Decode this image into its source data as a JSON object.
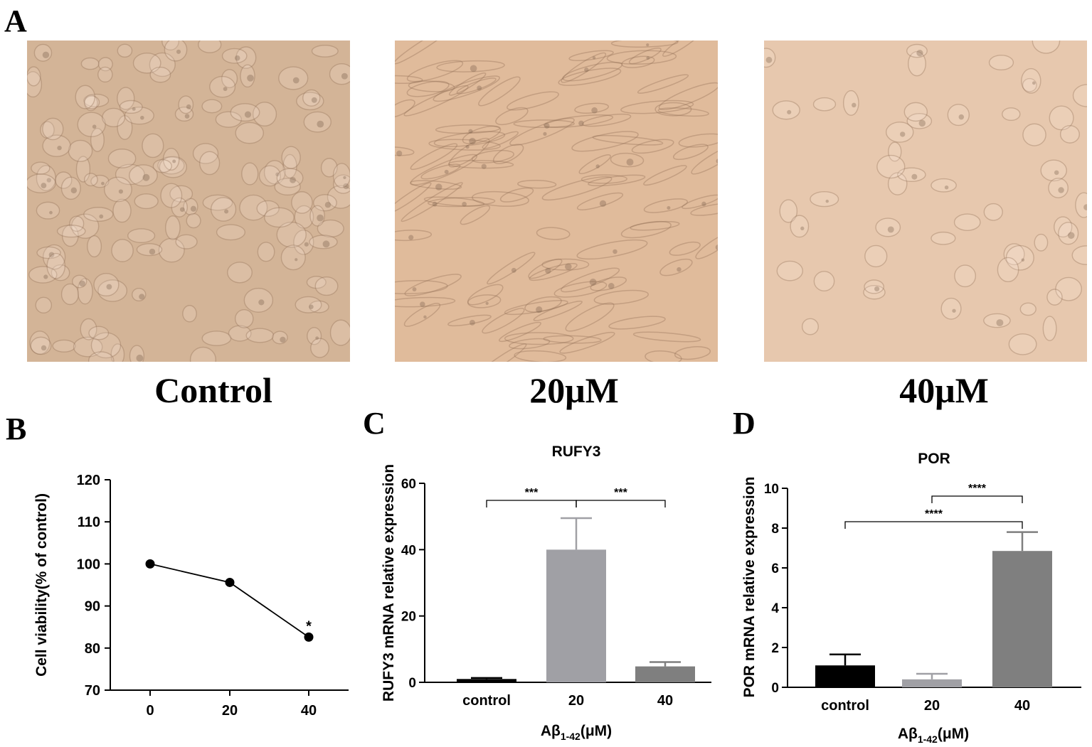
{
  "panels": {
    "a": "A",
    "b": "B",
    "c": "C",
    "d": "D"
  },
  "micrographs": [
    {
      "label": "Control",
      "tone": "#d3b497",
      "texture": "dense"
    },
    {
      "label": "20μM",
      "tone": "#e0bb9b",
      "texture": "elongated"
    },
    {
      "label": "40μM",
      "tone": "#e7c8ae",
      "texture": "sparse"
    }
  ],
  "chart_data": [
    {
      "type": "line",
      "panel": "B",
      "ylabel": "Cell viability(% of control)",
      "xlabel": "",
      "x": [
        "0",
        "20",
        "40"
      ],
      "yticks": [
        70,
        80,
        90,
        100,
        110,
        120
      ],
      "ylim": [
        70,
        120
      ],
      "series": [
        {
          "values": [
            100,
            95.6,
            82.6
          ]
        }
      ],
      "annotations": [
        {
          "x": "40",
          "text": "*"
        }
      ],
      "color": "#000000"
    },
    {
      "type": "bar",
      "panel": "C",
      "title": "RUFY3",
      "ylabel": "RUFY3 mRNA relative expression",
      "xlabel_main": "Aβ",
      "xlabel_sub": "1-42",
      "xlabel_tail": "(μM)",
      "categories": [
        "control",
        "20",
        "40"
      ],
      "values": [
        1.0,
        40.0,
        4.8
      ],
      "errors": [
        0.3,
        9.5,
        1.3
      ],
      "colors": [
        "#000000",
        "#a0a0a5",
        "#7f7f7f"
      ],
      "ylim": [
        0,
        60
      ],
      "yticks": [
        0,
        20,
        40,
        60
      ],
      "significance": [
        {
          "from": 0,
          "to": 1,
          "label": "***"
        },
        {
          "from": 1,
          "to": 2,
          "label": "***"
        }
      ]
    },
    {
      "type": "bar",
      "panel": "D",
      "title": "POR",
      "ylabel": "POR mRNA relative expression",
      "xlabel_main": "Aβ",
      "xlabel_sub": "1-42",
      "xlabel_tail": "(μM)",
      "categories": [
        "control",
        "20",
        "40"
      ],
      "values": [
        1.1,
        0.4,
        6.85
      ],
      "errors": [
        0.55,
        0.28,
        0.95
      ],
      "colors": [
        "#000000",
        "#a0a0a5",
        "#7f7f7f"
      ],
      "ylim": [
        0,
        10
      ],
      "yticks": [
        0,
        2,
        4,
        6,
        8,
        10
      ],
      "significance": [
        {
          "from": 1,
          "to": 2,
          "label": "****"
        },
        {
          "from": 0,
          "to": 2,
          "label": "****"
        }
      ]
    }
  ]
}
